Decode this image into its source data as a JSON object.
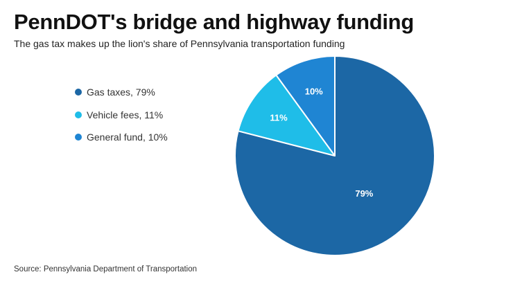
{
  "header": {
    "title": "PennDOT's bridge and highway funding",
    "subtitle": "The gas tax makes up the lion's share of Pennsylvania transportation funding"
  },
  "legend": {
    "placement": "left",
    "items": [
      {
        "label": "Gas taxes, 79%",
        "color": "#1c67a5"
      },
      {
        "label": "Vehicle fees, 11%",
        "color": "#1fbde8"
      },
      {
        "label": "General fund, 10%",
        "color": "#1f85d3"
      }
    ]
  },
  "footer": {
    "source": "Source: Pennsylvania Department of Transportation"
  },
  "chart_data": {
    "type": "pie",
    "title": "PennDOT's bridge and highway funding",
    "subtitle": "The gas tax makes up the lion's share of Pennsylvania transportation funding",
    "categories": [
      "Gas taxes",
      "Vehicle fees",
      "General fund"
    ],
    "values": [
      79,
      11,
      10
    ],
    "labels": [
      "79%",
      "11%",
      "10%"
    ],
    "colors": [
      "#1c67a5",
      "#1fbde8",
      "#1f85d3"
    ],
    "start_angle_deg": 0,
    "direction": "clockwise",
    "legend_placement": "left",
    "slice_border_color": "#ffffff"
  }
}
